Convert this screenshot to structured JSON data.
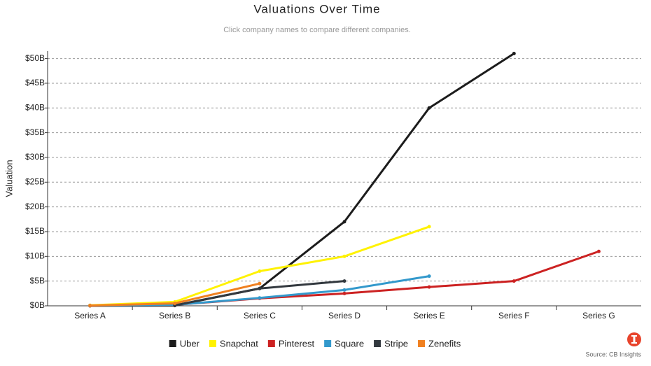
{
  "chart_data": {
    "type": "line",
    "title": "Valuations Over Time",
    "subtitle": "Click company names to compare different companies.",
    "y_label": "Valuation",
    "source": "Source: CB Insights",
    "categories": [
      "Series A",
      "Series B",
      "Series C",
      "Series D",
      "Series E",
      "Series F",
      "Series G"
    ],
    "series": [
      {
        "name": "Uber",
        "color": "#1c1c1c",
        "values": [
          0,
          0.06,
          3.5,
          17,
          40,
          51,
          null
        ]
      },
      {
        "name": "Snapchat",
        "color": "#fff200",
        "values": [
          0.1,
          0.8,
          7,
          10,
          16,
          null,
          null
        ]
      },
      {
        "name": "Pinterest",
        "color": "#cc2222",
        "values": [
          0.04,
          0.2,
          1.5,
          2.5,
          3.8,
          5,
          11
        ]
      },
      {
        "name": "Square",
        "color": "#3399cc",
        "values": [
          0.05,
          0.2,
          1.6,
          3.2,
          6,
          null,
          null
        ]
      },
      {
        "name": "Stripe",
        "color": "#33393f",
        "values": [
          null,
          0.1,
          3.5,
          5,
          null,
          null,
          null
        ]
      },
      {
        "name": "Zenefits",
        "color": "#f08020",
        "values": [
          0.05,
          0.5,
          4.5,
          null,
          null,
          null,
          null
        ]
      }
    ],
    "ylim": [
      0,
      51.5
    ],
    "yticks": [
      {
        "value": 0,
        "label": "$0B"
      },
      {
        "value": 5,
        "label": "$5B"
      },
      {
        "value": 10,
        "label": "$10B"
      },
      {
        "value": 15,
        "label": "$15B"
      },
      {
        "value": 20,
        "label": "$20B"
      },
      {
        "value": 25,
        "label": "$25B"
      },
      {
        "value": 30,
        "label": "$30B"
      },
      {
        "value": 35,
        "label": "$35B"
      },
      {
        "value": 40,
        "label": "$40B"
      },
      {
        "value": 45,
        "label": "$45B"
      },
      {
        "value": 50,
        "label": "$50B"
      }
    ],
    "grid": true
  }
}
